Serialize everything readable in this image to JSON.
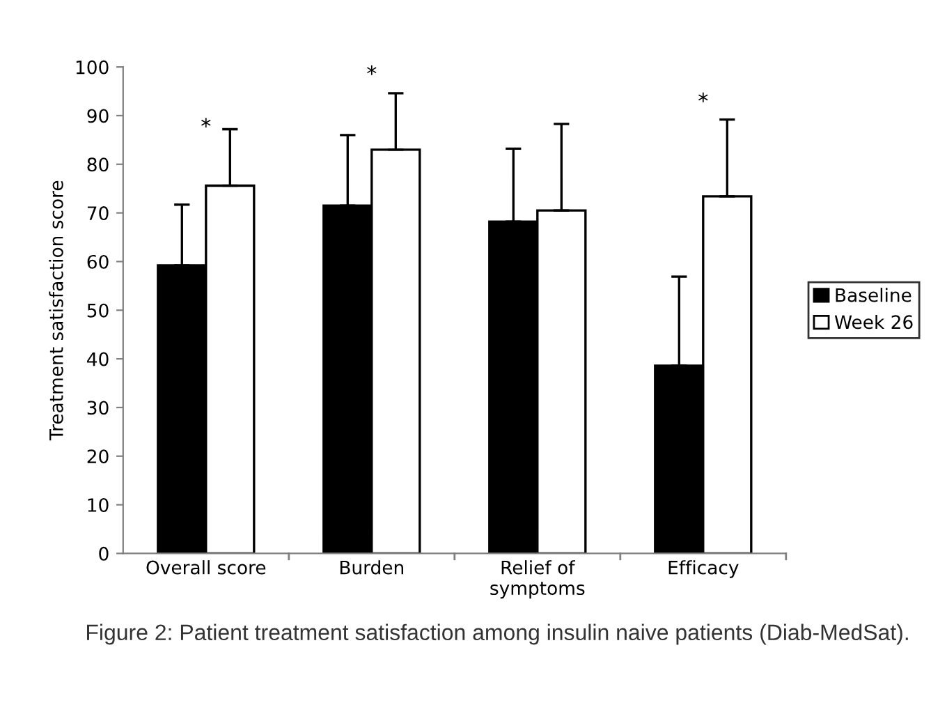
{
  "chart_data": {
    "type": "bar",
    "ylabel": "Treatment satisfaction score",
    "categories": [
      "Overall score",
      "Burden",
      "Relief of\nsymptoms",
      "Efficacy"
    ],
    "series": [
      {
        "name": "Baseline",
        "color": "#000000",
        "values": [
          59.2,
          71.5,
          68.2,
          38.6
        ],
        "errors": [
          [
            59.2,
            71.7
          ],
          [
            71.5,
            86.0
          ],
          [
            68.2,
            83.2
          ],
          [
            38.6,
            56.9
          ]
        ]
      },
      {
        "name": "Week 26",
        "color": "#ffffff",
        "values": [
          75.6,
          83.0,
          70.5,
          73.4
        ],
        "errors": [
          [
            75.6,
            87.2
          ],
          [
            83.0,
            94.6
          ],
          [
            70.5,
            88.3
          ],
          [
            73.4,
            89.2
          ]
        ]
      }
    ],
    "ylim": [
      0,
      100
    ],
    "yticks": [
      0,
      10,
      20,
      30,
      40,
      50,
      60,
      70,
      80,
      90,
      100
    ],
    "grid": false,
    "legend": "right",
    "annotations": [
      "*",
      "*",
      "*",
      "Figure 2: Patient treatment satisfaction among insulin naive patients (Diab-MedSat)."
    ]
  }
}
